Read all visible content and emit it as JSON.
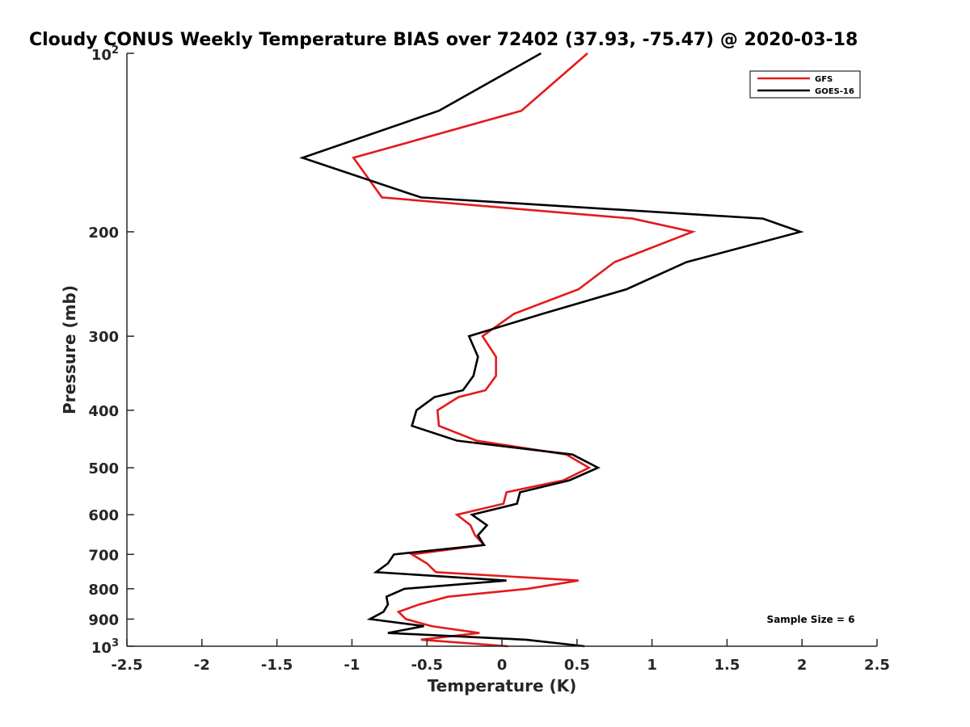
{
  "chart_data": {
    "type": "line",
    "title": "Cloudy CONUS Weekly Temperature BIAS over 72402 (37.93, -75.47) @ 2020-03-18",
    "xlabel": "Temperature (K)",
    "ylabel": "Pressure (mb)",
    "xlim": [
      -2.5,
      2.5
    ],
    "ylim": [
      1000,
      100
    ],
    "y_scale": "log",
    "y_reversed": true,
    "grid": false,
    "legend_position": "top-right",
    "x_ticks": [
      {
        "value": -2.5,
        "label": "-2.5"
      },
      {
        "value": -2,
        "label": "-2"
      },
      {
        "value": -1.5,
        "label": "-1.5"
      },
      {
        "value": -1,
        "label": "-1"
      },
      {
        "value": -0.5,
        "label": "-0.5"
      },
      {
        "value": 0,
        "label": "0"
      },
      {
        "value": 0.5,
        "label": "0.5"
      },
      {
        "value": 1,
        "label": "1"
      },
      {
        "value": 1.5,
        "label": "1.5"
      },
      {
        "value": 2,
        "label": "2"
      },
      {
        "value": 2.5,
        "label": "2.5"
      }
    ],
    "y_ticks": [
      {
        "value": 200,
        "label": "200"
      },
      {
        "value": 300,
        "label": "300"
      },
      {
        "value": 400,
        "label": "400"
      },
      {
        "value": 500,
        "label": "500"
      },
      {
        "value": 600,
        "label": "600"
      },
      {
        "value": 700,
        "label": "700"
      },
      {
        "value": 800,
        "label": "800"
      },
      {
        "value": 900,
        "label": "900"
      }
    ],
    "y_power_ticks": [
      {
        "value": 100,
        "base": "10",
        "exponent": "2"
      },
      {
        "value": 1000,
        "base": "10",
        "exponent": "3"
      }
    ],
    "series": [
      {
        "name": "GFS",
        "color": "#e31a1c",
        "points": [
          [
            0.57,
            100
          ],
          [
            0.13,
            125
          ],
          [
            -0.99,
            150
          ],
          [
            -0.8,
            175
          ],
          [
            0.87,
            190
          ],
          [
            1.27,
            200
          ],
          [
            0.75,
            225
          ],
          [
            0.51,
            250
          ],
          [
            0.08,
            275
          ],
          [
            -0.13,
            300
          ],
          [
            -0.04,
            325
          ],
          [
            -0.04,
            350
          ],
          [
            -0.11,
            370
          ],
          [
            -0.29,
            380
          ],
          [
            -0.43,
            400
          ],
          [
            -0.42,
            425
          ],
          [
            -0.17,
            450
          ],
          [
            0.43,
            475
          ],
          [
            0.58,
            500
          ],
          [
            0.41,
            525
          ],
          [
            0.03,
            550
          ],
          [
            0.01,
            575
          ],
          [
            -0.3,
            600
          ],
          [
            -0.21,
            625
          ],
          [
            -0.18,
            650
          ],
          [
            -0.12,
            675
          ],
          [
            -0.6,
            700
          ],
          [
            -0.5,
            725
          ],
          [
            -0.44,
            750
          ],
          [
            0.51,
            775
          ],
          [
            0.17,
            800
          ],
          [
            -0.36,
            825
          ],
          [
            -0.55,
            850
          ],
          [
            -0.69,
            875
          ],
          [
            -0.64,
            900
          ],
          [
            -0.47,
            925
          ],
          [
            -0.15,
            950
          ],
          [
            -0.54,
            975
          ],
          [
            0.04,
            1000
          ]
        ]
      },
      {
        "name": "GOES-16",
        "color": "#000000",
        "points": [
          [
            0.26,
            100
          ],
          [
            -0.42,
            125
          ],
          [
            -1.33,
            150
          ],
          [
            -0.54,
            175
          ],
          [
            1.74,
            190
          ],
          [
            1.99,
            200
          ],
          [
            1.23,
            225
          ],
          [
            0.83,
            250
          ],
          [
            0.27,
            275
          ],
          [
            -0.22,
            300
          ],
          [
            -0.16,
            325
          ],
          [
            -0.19,
            350
          ],
          [
            -0.26,
            370
          ],
          [
            -0.45,
            380
          ],
          [
            -0.57,
            400
          ],
          [
            -0.6,
            425
          ],
          [
            -0.3,
            450
          ],
          [
            0.47,
            475
          ],
          [
            0.64,
            500
          ],
          [
            0.45,
            525
          ],
          [
            0.12,
            550
          ],
          [
            0.1,
            575
          ],
          [
            -0.2,
            600
          ],
          [
            -0.1,
            625
          ],
          [
            -0.16,
            650
          ],
          [
            -0.12,
            675
          ],
          [
            -0.72,
            700
          ],
          [
            -0.76,
            725
          ],
          [
            -0.84,
            750
          ],
          [
            0.03,
            775
          ],
          [
            -0.65,
            800
          ],
          [
            -0.77,
            825
          ],
          [
            -0.76,
            850
          ],
          [
            -0.79,
            875
          ],
          [
            -0.88,
            900
          ],
          [
            -0.52,
            925
          ],
          [
            -0.76,
            950
          ],
          [
            0.16,
            975
          ],
          [
            0.55,
            1000
          ]
        ]
      }
    ],
    "annotations": [
      {
        "text": "Sample Size = 6",
        "x": 2.0,
        "y": 900
      }
    ]
  }
}
